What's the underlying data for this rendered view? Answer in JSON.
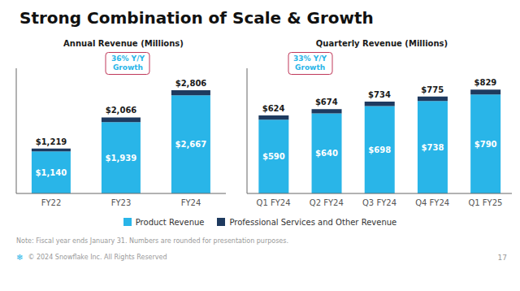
{
  "title": "Strong Combination of Scale & Growth",
  "legend": "bottom",
  "annotations": [
    {
      "text": "Note: Fiscal year ends January 31. Numbers are rounded for presentation purposes."
    },
    {
      "text": "❄",
      "color": "#29b5e8"
    },
    {
      "text": "© 2024 Snowflake Inc. All Rights Reserved"
    },
    {
      "text": "17"
    }
  ],
  "chart_data": [
    {
      "type": "bar",
      "title": "Annual Revenue (Millions)",
      "stacked": true,
      "data_labels": true,
      "tick_labels": "x",
      "grid": false,
      "ylim": [
        0,
        3400
      ],
      "categories": [
        "FY22",
        "FY23",
        "FY24"
      ],
      "series": [
        {
          "name": "Product Revenue",
          "color": "#29b5e8",
          "values": [
            1140,
            1939,
            2667
          ],
          "value_labels": [
            "$1,140",
            "$1,939",
            "$2,667"
          ]
        },
        {
          "name": "Professional Services and Other Revenue",
          "color": "#1e3a5f",
          "values": [
            79,
            127,
            139
          ]
        }
      ],
      "totals": [
        1219,
        2066,
        2806
      ],
      "total_labels": [
        "$1,219",
        "$2,066",
        "$2,806"
      ],
      "annotations": [
        {
          "text": "36% Y/Y\nGrowth",
          "color": "#29b5e8"
        }
      ]
    },
    {
      "type": "bar",
      "title": "Quarterly Revenue (Millions)",
      "stacked": true,
      "data_labels": true,
      "tick_labels": "x",
      "grid": false,
      "ylim": [
        0,
        1000
      ],
      "categories": [
        "Q1 FY24",
        "Q2 FY24",
        "Q3 FY24",
        "Q4 FY24",
        "Q1 FY25"
      ],
      "series": [
        {
          "name": "Product Revenue",
          "color": "#29b5e8",
          "values": [
            590,
            640,
            698,
            738,
            790
          ],
          "value_labels": [
            "$590",
            "$640",
            "$698",
            "$738",
            "$790"
          ]
        },
        {
          "name": "Professional Services and Other Revenue",
          "color": "#1e3a5f",
          "values": [
            34,
            34,
            36,
            37,
            39
          ]
        }
      ],
      "totals": [
        624,
        674,
        734,
        775,
        829
      ],
      "total_labels": [
        "$624",
        "$674",
        "$734",
        "$775",
        "$829"
      ],
      "annotations": [
        {
          "text": "33% Y/Y\nGrowth",
          "color": "#29b5e8"
        }
      ]
    }
  ]
}
